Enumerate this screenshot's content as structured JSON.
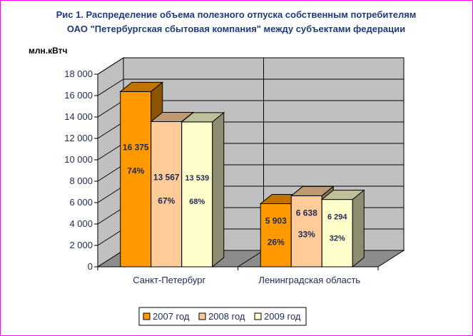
{
  "chart_data": {
    "type": "bar",
    "title_line1": "Рис 1. Распределение объема полезного отпуска собственным потребителям",
    "title_line2": "ОАО \"Петербургская сбытовая компания\" между субъектами федерации",
    "ylabel": "млн.кВтч",
    "ylim": [
      0,
      18000
    ],
    "yticks": [
      "0",
      "2 000",
      "4 000",
      "6 000",
      "8 000",
      "10 000",
      "12 000",
      "14 000",
      "16 000",
      "18 000"
    ],
    "categories": [
      "Санкт-Петербург",
      "Ленинградская область"
    ],
    "series": [
      {
        "name": "2007 год",
        "color": "#ff9900",
        "values": [
          16375,
          5903
        ],
        "value_labels": [
          "16 375",
          "5 903"
        ],
        "share_labels": [
          "74%",
          "26%"
        ]
      },
      {
        "name": "2008 год",
        "color": "#ffcc99",
        "values": [
          13567,
          6638
        ],
        "value_labels": [
          "13 567",
          "6 638"
        ],
        "share_labels": [
          "67%",
          "33%"
        ]
      },
      {
        "name": "2009 год",
        "color": "#ffffcc",
        "values": [
          13539,
          6294
        ],
        "value_labels": [
          "13 539",
          "6 294"
        ],
        "share_labels": [
          "68%",
          "32%"
        ]
      }
    ],
    "grid": true,
    "legend_position": "bottom"
  }
}
